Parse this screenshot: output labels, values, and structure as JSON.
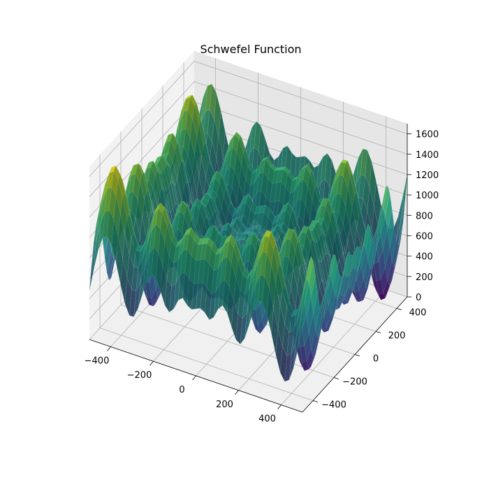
{
  "chart_data": {
    "type": "surface",
    "title": "Schwefel Function",
    "function": "418.9829*2 - x*sin(sqrt(|x|)) - y*sin(sqrt(|y|))",
    "x": {
      "range": [
        -500,
        500
      ],
      "ticks": [
        -400,
        -200,
        0,
        200,
        400
      ]
    },
    "y": {
      "range": [
        -500,
        500
      ],
      "ticks": [
        -400,
        -200,
        0,
        200,
        400
      ]
    },
    "z": {
      "range": [
        0,
        1700
      ],
      "ticks": [
        0,
        200,
        400,
        600,
        800,
        1000,
        1200,
        1400,
        1600
      ]
    },
    "tick_labels": {
      "x": [
        "−400",
        "−200",
        "0",
        "200",
        "400"
      ],
      "y": [
        "−400",
        "−200",
        "0",
        "200",
        "400"
      ],
      "z": [
        "0",
        "200",
        "400",
        "600",
        "800",
        "1000",
        "1200",
        "1400",
        "1600"
      ]
    },
    "colormap": "viridis",
    "grid": true
  }
}
